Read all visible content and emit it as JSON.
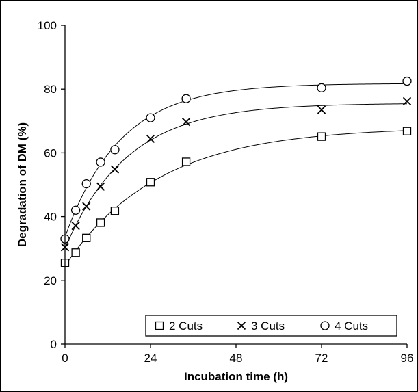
{
  "chart_data": {
    "type": "scatter",
    "title": "",
    "xlabel": "Incubation time (h)",
    "ylabel": "Degradation of DM (%)",
    "xlim": [
      0,
      96
    ],
    "ylim": [
      0,
      100
    ],
    "xticks": [
      0,
      24,
      48,
      72,
      96
    ],
    "yticks": [
      0,
      20,
      40,
      60,
      80,
      100
    ],
    "grid": false,
    "legend_position": "bottom-right",
    "fitted_curves": true,
    "series": [
      {
        "name": "2 Cuts",
        "marker": "square",
        "x": [
          0,
          3,
          6,
          10,
          14,
          24,
          34,
          72,
          96
        ],
        "y": [
          25.5,
          28.7,
          33.3,
          38.1,
          41.8,
          50.8,
          57.2,
          65.1,
          66.8
        ]
      },
      {
        "name": "3 Cuts",
        "marker": "x",
        "x": [
          0,
          3,
          6,
          10,
          14,
          24,
          34,
          72,
          96
        ],
        "y": [
          30.4,
          37.1,
          43.2,
          49.4,
          54.8,
          64.4,
          69.7,
          73.5,
          76.2
        ]
      },
      {
        "name": "4 Cuts",
        "marker": "circle",
        "x": [
          0,
          3,
          6,
          10,
          14,
          24,
          34,
          72,
          96
        ],
        "y": [
          33.0,
          42.0,
          50.3,
          57.1,
          61.0,
          71.0,
          77.0,
          80.4,
          82.5
        ]
      }
    ]
  },
  "colors": {
    "ink": "#000000",
    "background": "#ffffff"
  }
}
